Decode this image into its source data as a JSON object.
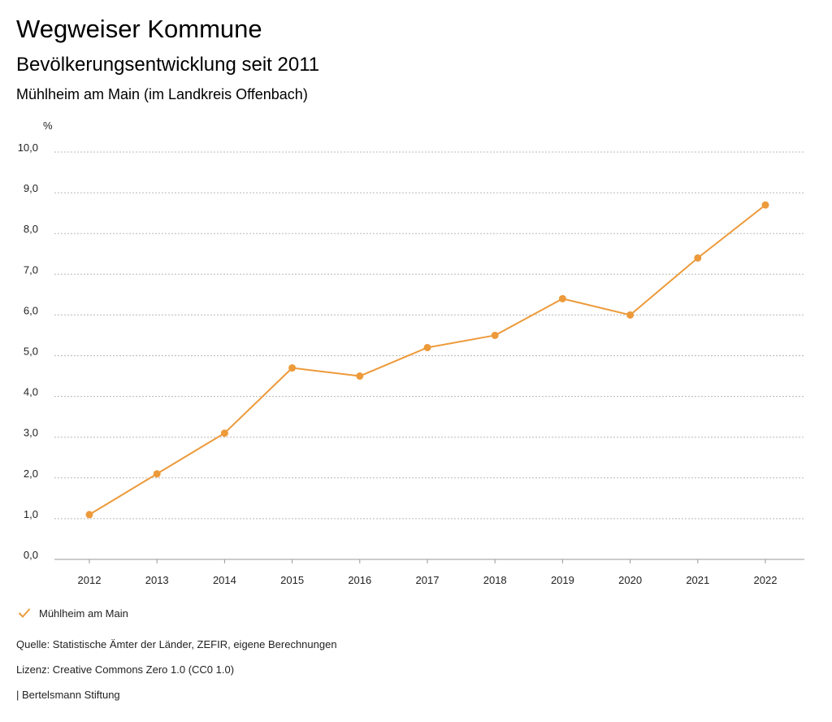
{
  "header": {
    "title": "Wegweiser Kommune",
    "subtitle": "Bevölkerungsentwicklung seit 2011",
    "subtitle2": "Mühlheim am Main (im Landkreis Offenbach)"
  },
  "chart_data": {
    "type": "line",
    "unit_label": "%",
    "categories": [
      "2012",
      "2013",
      "2014",
      "2015",
      "2016",
      "2017",
      "2018",
      "2019",
      "2020",
      "2021",
      "2022"
    ],
    "series": [
      {
        "name": "Mühlheim am Main",
        "values": [
          1.1,
          2.1,
          3.1,
          4.7,
          4.5,
          5.2,
          5.5,
          6.4,
          6.0,
          7.4,
          8.7
        ],
        "color": "#ed9a3a"
      }
    ],
    "y_ticks": [
      "0,0",
      "1,0",
      "2,0",
      "3,0",
      "4,0",
      "5,0",
      "6,0",
      "7,0",
      "8,0",
      "9,0",
      "10,0"
    ],
    "ylim": [
      0,
      10
    ],
    "grid": true,
    "legend_position": "bottom-left"
  },
  "footer": {
    "source": "Quelle: Statistische Ämter der Länder, ZEFIR, eigene Berechnungen",
    "license": "Lizenz: Creative Commons Zero 1.0 (CC0 1.0)",
    "brand": "| Bertelsmann Stiftung"
  }
}
